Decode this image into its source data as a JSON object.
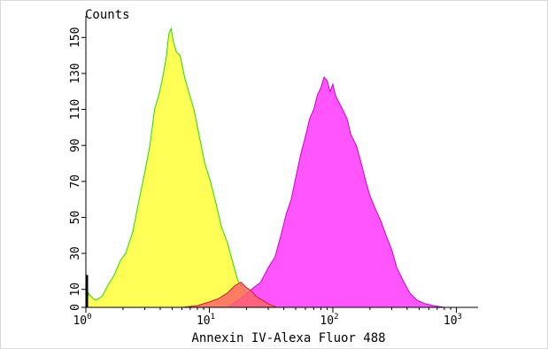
{
  "chart_data": {
    "type": "area",
    "title": "",
    "ylabel": "Counts",
    "xlabel": "Annexin IV-Alexa Fluor 488",
    "x_scale": "log",
    "xlim": [
      1,
      1500
    ],
    "ylim": [
      0,
      160
    ],
    "y_ticks": [
      0,
      10,
      30,
      50,
      70,
      90,
      110,
      130,
      150
    ],
    "y_tick_labels": [
      "0",
      "10",
      "30",
      "50",
      "70",
      "90",
      "110",
      "130",
      "150"
    ],
    "x_ticks": [
      {
        "value": 1,
        "base": "10",
        "exp": "0"
      },
      {
        "value": 10,
        "base": "10",
        "exp": "1"
      },
      {
        "value": 100,
        "base": "10",
        "exp": "2"
      },
      {
        "value": 1000,
        "base": "10",
        "exp": "3"
      }
    ],
    "grid": false,
    "legend": "none",
    "series": [
      {
        "color_fill": "#ffff55",
        "color_line": "#22dd00",
        "points": [
          [
            1.0,
            0
          ],
          [
            1.05,
            8
          ],
          [
            1.1,
            6
          ],
          [
            1.2,
            4
          ],
          [
            1.35,
            6
          ],
          [
            1.5,
            12
          ],
          [
            1.7,
            18
          ],
          [
            1.9,
            26
          ],
          [
            2.1,
            30
          ],
          [
            2.4,
            42
          ],
          [
            2.7,
            60
          ],
          [
            3.0,
            75
          ],
          [
            3.3,
            90
          ],
          [
            3.6,
            110
          ],
          [
            3.9,
            118
          ],
          [
            4.2,
            128
          ],
          [
            4.5,
            140
          ],
          [
            4.7,
            152
          ],
          [
            4.9,
            155
          ],
          [
            5.1,
            148
          ],
          [
            5.4,
            142
          ],
          [
            5.8,
            140
          ],
          [
            6.3,
            128
          ],
          [
            6.8,
            120
          ],
          [
            7.5,
            110
          ],
          [
            8.3,
            95
          ],
          [
            9.2,
            80
          ],
          [
            10.2,
            70
          ],
          [
            11.3,
            58
          ],
          [
            12.5,
            45
          ],
          [
            14,
            36
          ],
          [
            15.5,
            25
          ],
          [
            17,
            15
          ],
          [
            19,
            10
          ],
          [
            21,
            6
          ],
          [
            24,
            4
          ],
          [
            28,
            2
          ],
          [
            32,
            1
          ],
          [
            40,
            0
          ]
        ]
      },
      {
        "color_fill": "#ff55ff",
        "color_line": "#cc00cc",
        "points": [
          [
            14,
            0
          ],
          [
            18,
            5
          ],
          [
            22,
            10
          ],
          [
            26,
            14
          ],
          [
            30,
            22
          ],
          [
            34,
            28
          ],
          [
            38,
            40
          ],
          [
            42,
            52
          ],
          [
            46,
            60
          ],
          [
            50,
            72
          ],
          [
            55,
            85
          ],
          [
            60,
            95
          ],
          [
            65,
            105
          ],
          [
            70,
            110
          ],
          [
            75,
            118
          ],
          [
            80,
            122
          ],
          [
            85,
            128
          ],
          [
            90,
            126
          ],
          [
            95,
            120
          ],
          [
            100,
            124
          ],
          [
            105,
            118
          ],
          [
            110,
            115
          ],
          [
            120,
            110
          ],
          [
            130,
            105
          ],
          [
            140,
            96
          ],
          [
            155,
            90
          ],
          [
            170,
            80
          ],
          [
            185,
            70
          ],
          [
            200,
            62
          ],
          [
            220,
            55
          ],
          [
            245,
            48
          ],
          [
            270,
            40
          ],
          [
            300,
            32
          ],
          [
            330,
            22
          ],
          [
            370,
            15
          ],
          [
            420,
            8
          ],
          [
            480,
            4
          ],
          [
            560,
            2
          ],
          [
            650,
            1
          ],
          [
            800,
            0
          ]
        ]
      },
      {
        "color_fill": "#ff6666",
        "color_line": "#cc2222",
        "points": [
          [
            6,
            0
          ],
          [
            8,
            1
          ],
          [
            10,
            3
          ],
          [
            12,
            5
          ],
          [
            14,
            8
          ],
          [
            16,
            12
          ],
          [
            18,
            14
          ],
          [
            20,
            11
          ],
          [
            22,
            9
          ],
          [
            24,
            6
          ],
          [
            27,
            4
          ],
          [
            30,
            2
          ],
          [
            35,
            0
          ]
        ]
      }
    ]
  }
}
